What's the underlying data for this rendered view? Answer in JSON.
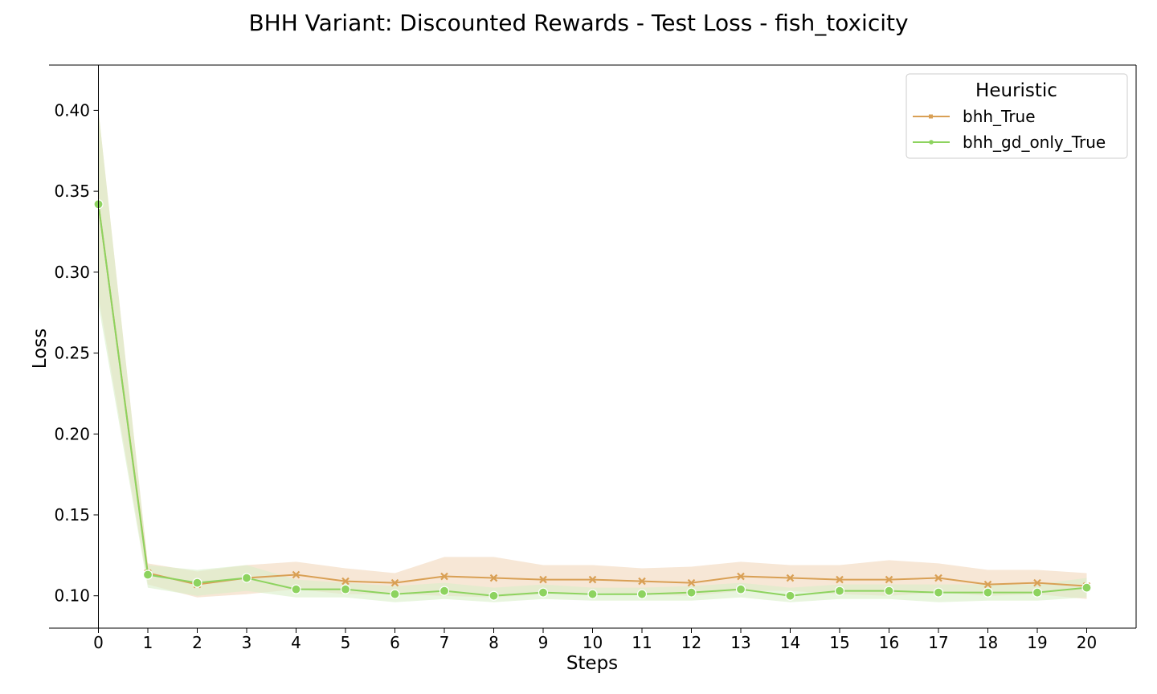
{
  "chart_data": {
    "type": "line",
    "title": "BHH Variant: Discounted Rewards - Test Loss - fish_toxicity",
    "xlabel": "Steps",
    "ylabel": "Loss",
    "xlim": [
      -1,
      21
    ],
    "ylim": [
      0.08,
      0.428
    ],
    "x_ticks": [
      0,
      1,
      2,
      3,
      4,
      5,
      6,
      7,
      8,
      9,
      10,
      11,
      12,
      13,
      14,
      15,
      16,
      17,
      18,
      19,
      20
    ],
    "x_tick_labels": [
      "0",
      "1",
      "2",
      "3",
      "4",
      "5",
      "6",
      "7",
      "8",
      "9",
      "10",
      "11",
      "12",
      "13",
      "14",
      "15",
      "16",
      "17",
      "18",
      "19",
      "20"
    ],
    "y_ticks": [
      0.1,
      0.15,
      0.2,
      0.25,
      0.3,
      0.35,
      0.4
    ],
    "y_tick_labels": [
      "0.10",
      "0.15",
      "0.20",
      "0.25",
      "0.30",
      "0.35",
      "0.40"
    ],
    "grid": false,
    "legend": {
      "title": "Heuristic",
      "placement": "top-right"
    },
    "x": [
      0,
      1,
      2,
      3,
      4,
      5,
      6,
      7,
      8,
      9,
      10,
      11,
      12,
      13,
      14,
      15,
      16,
      17,
      18,
      19,
      20
    ],
    "series": [
      {
        "name": "bhh_True",
        "color": "#D9A055",
        "band_color": "#F6E3CF",
        "marker": "x",
        "values": [
          0.342,
          0.114,
          0.107,
          0.111,
          0.113,
          0.109,
          0.108,
          0.112,
          0.111,
          0.11,
          0.11,
          0.109,
          0.108,
          0.112,
          0.111,
          0.11,
          0.11,
          0.111,
          0.107,
          0.108,
          0.106
        ],
        "lower": [
          0.285,
          0.107,
          0.099,
          0.101,
          0.104,
          0.101,
          0.101,
          0.1,
          0.099,
          0.101,
          0.102,
          0.101,
          0.1,
          0.103,
          0.103,
          0.101,
          0.1,
          0.102,
          0.1,
          0.101,
          0.098
        ],
        "upper": [
          0.4,
          0.12,
          0.115,
          0.119,
          0.121,
          0.117,
          0.114,
          0.124,
          0.124,
          0.119,
          0.119,
          0.117,
          0.118,
          0.121,
          0.119,
          0.119,
          0.122,
          0.12,
          0.116,
          0.116,
          0.114
        ]
      },
      {
        "name": "bhh_gd_only_True",
        "color": "#8DD35F",
        "band_color": "#D9EEC8",
        "marker": "o",
        "values": [
          0.342,
          0.113,
          0.108,
          0.111,
          0.104,
          0.104,
          0.101,
          0.103,
          0.1,
          0.102,
          0.101,
          0.101,
          0.102,
          0.104,
          0.1,
          0.103,
          0.103,
          0.102,
          0.102,
          0.102,
          0.105
        ],
        "lower": [
          0.28,
          0.105,
          0.1,
          0.103,
          0.099,
          0.099,
          0.096,
          0.098,
          0.096,
          0.098,
          0.097,
          0.097,
          0.097,
          0.099,
          0.096,
          0.098,
          0.098,
          0.096,
          0.097,
          0.097,
          0.099
        ],
        "upper": [
          0.4,
          0.119,
          0.116,
          0.119,
          0.11,
          0.108,
          0.106,
          0.108,
          0.105,
          0.107,
          0.105,
          0.105,
          0.106,
          0.108,
          0.105,
          0.107,
          0.107,
          0.107,
          0.107,
          0.107,
          0.111
        ]
      }
    ]
  }
}
